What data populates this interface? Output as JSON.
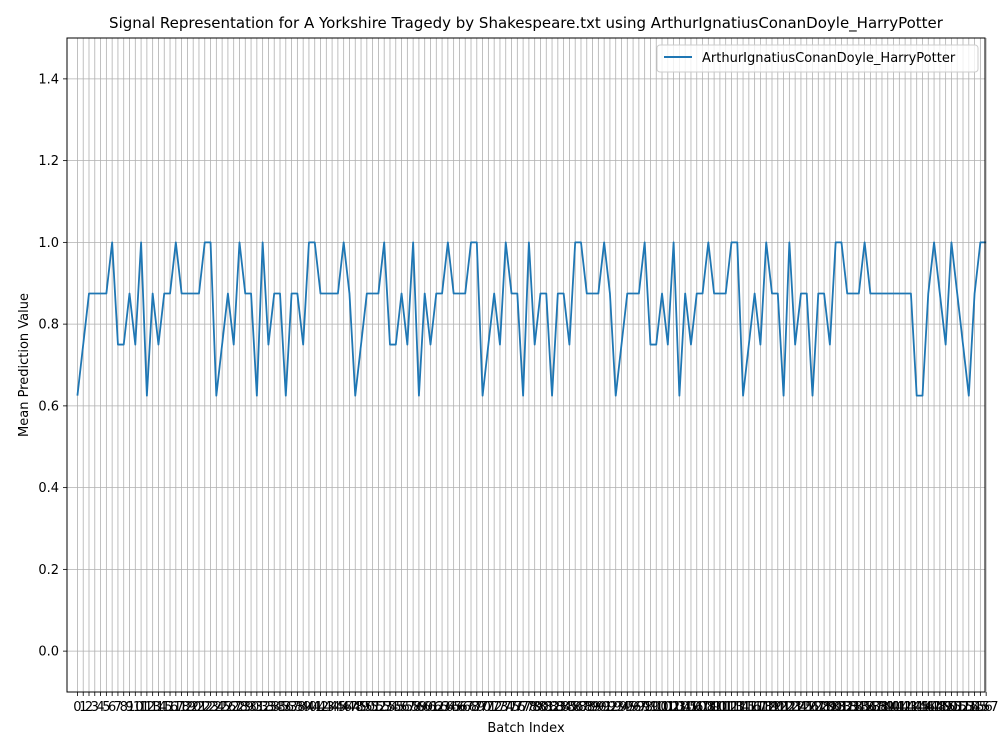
{
  "chart_data": {
    "type": "line",
    "title": "Signal Representation for A Yorkshire Tragedy by Shakespeare.txt using ArthurIgnatiusConanDoyle_HarryPotter",
    "xlabel": "Batch Index",
    "ylabel": "Mean Prediction Value",
    "ylim": [
      -0.1,
      1.5
    ],
    "xlim": [
      -1.8,
      156.8
    ],
    "yticks": [
      0.0,
      0.2,
      0.4,
      0.6,
      0.8,
      1.0,
      1.2,
      1.4
    ],
    "grid": true,
    "legend_position": "top-right",
    "series": [
      {
        "name": "ArthurIgnatiusConanDoyle_HarryPotter",
        "color": "#1f77b4",
        "x_start": 0,
        "values": [
          0.625,
          0.75,
          0.875,
          0.875,
          0.875,
          0.875,
          1.0,
          0.75,
          0.75,
          0.875,
          0.75,
          1.0,
          0.625,
          0.875,
          0.75,
          0.875,
          0.875,
          1.0,
          0.875,
          0.875,
          0.875,
          0.875,
          1.0,
          1.0,
          0.625,
          0.75,
          0.875,
          0.75,
          1.0,
          0.875,
          0.875,
          0.625,
          1.0,
          0.75,
          0.875,
          0.875,
          0.625,
          0.875,
          0.875,
          0.75,
          1.0,
          1.0,
          0.875,
          0.875,
          0.875,
          0.875,
          1.0,
          0.875,
          0.625,
          0.75,
          0.875,
          0.875,
          0.875,
          1.0,
          0.75,
          0.75,
          0.875,
          0.75,
          1.0,
          0.625,
          0.875,
          0.75,
          0.875,
          0.875,
          1.0,
          0.875,
          0.875,
          0.875,
          1.0,
          1.0,
          0.625,
          0.75,
          0.875,
          0.75,
          1.0,
          0.875,
          0.875,
          0.625,
          1.0,
          0.75,
          0.875,
          0.875,
          0.625,
          0.875,
          0.875,
          0.75,
          1.0,
          1.0,
          0.875,
          0.875,
          0.875,
          1.0,
          0.875,
          0.625,
          0.75,
          0.875,
          0.875,
          0.875,
          1.0,
          0.75,
          0.75,
          0.875,
          0.75,
          1.0,
          0.625,
          0.875,
          0.75,
          0.875,
          0.875,
          1.0,
          0.875,
          0.875,
          0.875,
          1.0,
          1.0,
          0.625,
          0.75,
          0.875,
          0.75,
          1.0,
          0.875,
          0.875,
          0.625,
          1.0,
          0.75,
          0.875,
          0.875,
          0.625,
          0.875,
          0.875,
          0.75,
          1.0,
          1.0,
          0.875,
          0.875,
          0.875,
          1.0,
          0.875,
          0.875,
          0.875,
          0.875,
          0.875,
          0.875,
          0.875,
          0.875,
          0.625,
          0.625,
          0.875,
          1.0,
          0.875,
          0.75,
          1.0,
          0.875,
          0.75,
          0.625,
          0.875,
          1.0,
          1.0
        ]
      }
    ]
  }
}
